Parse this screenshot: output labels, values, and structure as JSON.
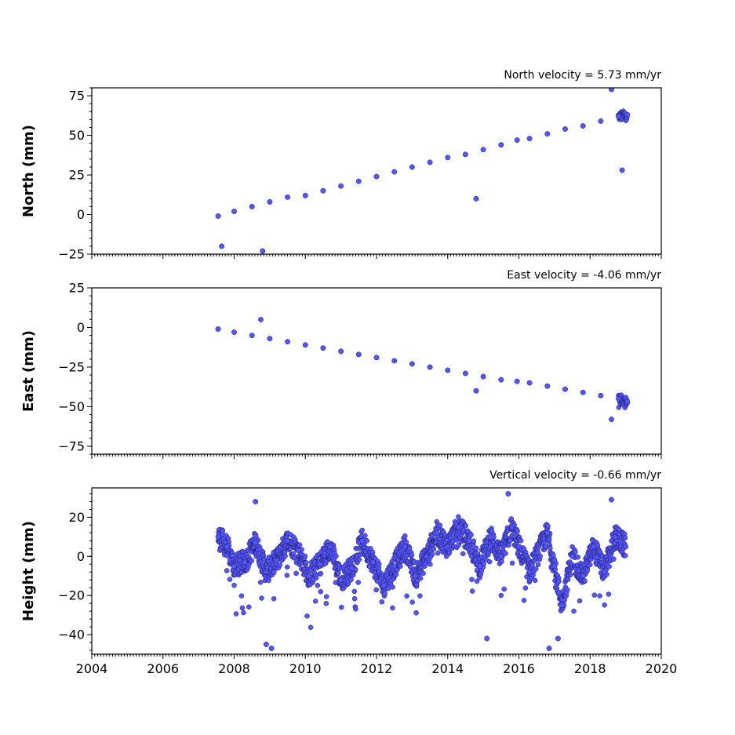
{
  "figure": {
    "x_ticks": [
      2004,
      2006,
      2008,
      2010,
      2012,
      2014,
      2016,
      2018,
      2020
    ],
    "x_range": [
      2004,
      2020
    ],
    "point_color": "#5555ff",
    "edge_color": "#1a1a55"
  },
  "chart_data": [
    {
      "type": "scatter",
      "title": "North velocity = 5.73 mm/yr",
      "ylabel": "North (mm)",
      "xlim": [
        2004,
        2020
      ],
      "ylim": [
        -25,
        80
      ],
      "yticks": [
        -25,
        0,
        25,
        50,
        75
      ],
      "series": [
        {
          "x": [
            2007.55,
            2008.0,
            2008.5,
            2009.0,
            2009.5,
            2010.0,
            2010.5,
            2011.0,
            2011.5,
            2012.0,
            2012.5,
            2013.0,
            2013.5,
            2014.0,
            2014.5,
            2015.0,
            2015.5,
            2015.95,
            2016.3,
            2016.8,
            2017.3,
            2017.8,
            2018.3,
            2018.8,
            2019.05,
            2007.65,
            2008.8,
            2014.8,
            2018.6,
            2018.9
          ],
          "y": [
            -1,
            2,
            5,
            8,
            11,
            12,
            15,
            18,
            21,
            24,
            27,
            30,
            33,
            36,
            38,
            41,
            44,
            47,
            48,
            51,
            54,
            56,
            59,
            62,
            63,
            -20,
            -23,
            10,
            79,
            28
          ]
        }
      ]
    },
    {
      "type": "scatter",
      "title": "East velocity = -4.06 mm/yr",
      "ylabel": "East (mm)",
      "xlim": [
        2004,
        2020
      ],
      "ylim": [
        -80,
        25
      ],
      "yticks": [
        -75,
        -50,
        -25,
        0,
        25
      ],
      "series": [
        {
          "x": [
            2007.55,
            2008.0,
            2008.5,
            2009.0,
            2009.5,
            2010.0,
            2010.5,
            2011.0,
            2011.5,
            2012.0,
            2012.5,
            2013.0,
            2013.5,
            2014.0,
            2014.5,
            2015.0,
            2015.5,
            2015.95,
            2016.3,
            2016.8,
            2017.3,
            2017.8,
            2018.3,
            2018.8,
            2019.05,
            2008.75,
            2014.8,
            2018.6
          ],
          "y": [
            -1,
            -3,
            -5,
            -7,
            -9,
            -11,
            -13,
            -15,
            -17,
            -19,
            -21,
            -23,
            -25,
            -27,
            -29,
            -31,
            -33,
            -34,
            -35,
            -37,
            -39,
            -41,
            -43,
            -45,
            -47,
            5,
            -40,
            -58
          ]
        }
      ]
    },
    {
      "type": "scatter",
      "title": "Vertical velocity = -0.66 mm/yr",
      "ylabel": "Height (mm)",
      "xlim": [
        2004,
        2020
      ],
      "ylim": [
        -50,
        35
      ],
      "yticks": [
        -40,
        -20,
        0,
        20
      ],
      "series": [
        {
          "x": [
            2007.55,
            2007.8,
            2008.0,
            2008.3,
            2008.6,
            2008.9,
            2009.2,
            2009.5,
            2009.8,
            2010.1,
            2010.4,
            2010.7,
            2011.0,
            2011.3,
            2011.6,
            2011.9,
            2012.2,
            2012.5,
            2012.8,
            2013.1,
            2013.4,
            2013.7,
            2014.0,
            2014.3,
            2014.6,
            2014.9,
            2015.2,
            2015.5,
            2015.8,
            2016.0,
            2016.3,
            2016.8,
            2017.0,
            2017.2,
            2017.5,
            2017.8,
            2018.1,
            2018.4,
            2018.7,
            2019.0,
            2008.6,
            2008.9,
            2009.05,
            2015.7,
            2016.85,
            2017.1,
            2018.6,
            2015.1
          ],
          "y": [
            10,
            5,
            -5,
            -3,
            7,
            -8,
            -2,
            8,
            3,
            -10,
            -4,
            5,
            -12,
            -6,
            8,
            -3,
            -15,
            -5,
            5,
            -10,
            0,
            12,
            5,
            15,
            8,
            -5,
            10,
            0,
            15,
            5,
            -8,
            12,
            -5,
            -25,
            0,
            -10,
            5,
            -8,
            10,
            5,
            28,
            -45,
            -47,
            32,
            -47,
            -42,
            29,
            -42
          ]
        }
      ]
    }
  ]
}
